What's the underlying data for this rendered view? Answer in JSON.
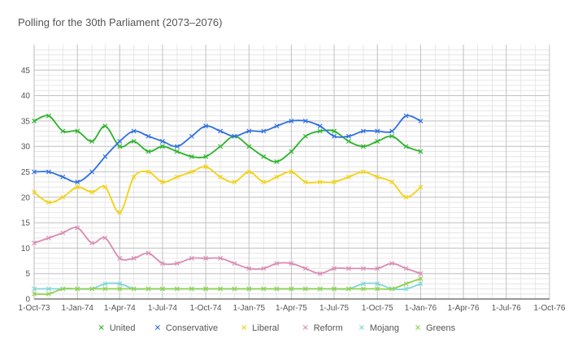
{
  "chart_data": {
    "type": "line",
    "title": "Polling for the 30th Parliament (2073–2076)",
    "xlabel": "",
    "ylabel": "",
    "ylim": [
      0,
      50
    ],
    "yticks": [
      0,
      5,
      10,
      15,
      20,
      25,
      30,
      35,
      40,
      45
    ],
    "x_range": [
      "2073-10-01",
      "2076-10-01"
    ],
    "x_tick_labels": [
      "1-Oct-73",
      "1-Jan-74",
      "1-Apr-74",
      "1-Jul-74",
      "1-Oct-74",
      "1-Jan-75",
      "1-Apr-75",
      "1-Jul-75",
      "1-Oct-75",
      "1-Jan-76",
      "1-Apr-76",
      "1-Jul-76",
      "1-Oct-76"
    ],
    "grid": true,
    "legend_position": "bottom",
    "series": [
      {
        "name": "United",
        "color": "#2bb32b",
        "points": [
          [
            "2073-10-01",
            35
          ],
          [
            "2073-11-01",
            36
          ],
          [
            "2073-12-01",
            33
          ],
          [
            "2074-01-01",
            33
          ],
          [
            "2074-02-01",
            31
          ],
          [
            "2074-03-01",
            34
          ],
          [
            "2074-04-01",
            30
          ],
          [
            "2074-05-01",
            31
          ],
          [
            "2074-06-01",
            29
          ],
          [
            "2074-07-01",
            30
          ],
          [
            "2074-08-01",
            29
          ],
          [
            "2074-09-01",
            28
          ],
          [
            "2074-10-01",
            28
          ],
          [
            "2074-11-01",
            30
          ],
          [
            "2074-12-01",
            32
          ],
          [
            "2075-01-01",
            30
          ],
          [
            "2075-02-01",
            28
          ],
          [
            "2075-03-01",
            27
          ],
          [
            "2075-04-01",
            29
          ],
          [
            "2075-05-01",
            32
          ],
          [
            "2075-06-01",
            33
          ],
          [
            "2075-07-01",
            33
          ],
          [
            "2075-08-01",
            31
          ],
          [
            "2075-09-01",
            30
          ],
          [
            "2075-10-01",
            31
          ],
          [
            "2075-11-01",
            32
          ],
          [
            "2075-12-01",
            30
          ],
          [
            "2076-01-01",
            29
          ]
        ]
      },
      {
        "name": "Conservative",
        "color": "#2f6fe0",
        "points": [
          [
            "2073-10-01",
            25
          ],
          [
            "2073-11-01",
            25
          ],
          [
            "2073-12-01",
            24
          ],
          [
            "2074-01-01",
            23
          ],
          [
            "2074-02-01",
            25
          ],
          [
            "2074-03-01",
            28
          ],
          [
            "2074-04-01",
            31
          ],
          [
            "2074-05-01",
            33
          ],
          [
            "2074-06-01",
            32
          ],
          [
            "2074-07-01",
            31
          ],
          [
            "2074-08-01",
            30
          ],
          [
            "2074-09-01",
            32
          ],
          [
            "2074-10-01",
            34
          ],
          [
            "2074-11-01",
            33
          ],
          [
            "2074-12-01",
            32
          ],
          [
            "2075-01-01",
            33
          ],
          [
            "2075-02-01",
            33
          ],
          [
            "2075-03-01",
            34
          ],
          [
            "2075-04-01",
            35
          ],
          [
            "2075-05-01",
            35
          ],
          [
            "2075-06-01",
            34
          ],
          [
            "2075-07-01",
            32
          ],
          [
            "2075-08-01",
            32
          ],
          [
            "2075-09-01",
            33
          ],
          [
            "2075-10-01",
            33
          ],
          [
            "2075-11-01",
            33
          ],
          [
            "2075-12-01",
            36
          ],
          [
            "2076-01-01",
            35
          ]
        ]
      },
      {
        "name": "Liberal",
        "color": "#f2d20f",
        "points": [
          [
            "2073-10-01",
            21
          ],
          [
            "2073-11-01",
            19
          ],
          [
            "2073-12-01",
            20
          ],
          [
            "2074-01-01",
            22
          ],
          [
            "2074-02-01",
            21
          ],
          [
            "2074-03-01",
            22
          ],
          [
            "2074-04-01",
            17
          ],
          [
            "2074-05-01",
            24
          ],
          [
            "2074-06-01",
            25
          ],
          [
            "2074-07-01",
            23
          ],
          [
            "2074-08-01",
            24
          ],
          [
            "2074-09-01",
            25
          ],
          [
            "2074-10-01",
            26
          ],
          [
            "2074-11-01",
            24
          ],
          [
            "2074-12-01",
            23
          ],
          [
            "2075-01-01",
            25
          ],
          [
            "2075-02-01",
            23
          ],
          [
            "2075-03-01",
            24
          ],
          [
            "2075-04-01",
            25
          ],
          [
            "2075-05-01",
            23
          ],
          [
            "2075-06-01",
            23
          ],
          [
            "2075-07-01",
            23
          ],
          [
            "2075-08-01",
            24
          ],
          [
            "2075-09-01",
            25
          ],
          [
            "2075-10-01",
            24
          ],
          [
            "2075-11-01",
            23
          ],
          [
            "2075-12-01",
            20
          ],
          [
            "2076-01-01",
            22
          ]
        ]
      },
      {
        "name": "Reform",
        "color": "#d98cb3",
        "points": [
          [
            "2073-10-01",
            11
          ],
          [
            "2073-11-01",
            12
          ],
          [
            "2073-12-01",
            13
          ],
          [
            "2074-01-01",
            14
          ],
          [
            "2074-02-01",
            11
          ],
          [
            "2074-03-01",
            12
          ],
          [
            "2074-04-01",
            8
          ],
          [
            "2074-05-01",
            8
          ],
          [
            "2074-06-01",
            9
          ],
          [
            "2074-07-01",
            7
          ],
          [
            "2074-08-01",
            7
          ],
          [
            "2074-09-01",
            8
          ],
          [
            "2074-10-01",
            8
          ],
          [
            "2074-11-01",
            8
          ],
          [
            "2074-12-01",
            7
          ],
          [
            "2075-01-01",
            6
          ],
          [
            "2075-02-01",
            6
          ],
          [
            "2075-03-01",
            7
          ],
          [
            "2075-04-01",
            7
          ],
          [
            "2075-05-01",
            6
          ],
          [
            "2075-06-01",
            5
          ],
          [
            "2075-07-01",
            6
          ],
          [
            "2075-08-01",
            6
          ],
          [
            "2075-09-01",
            6
          ],
          [
            "2075-10-01",
            6
          ],
          [
            "2075-11-01",
            7
          ],
          [
            "2075-12-01",
            6
          ],
          [
            "2076-01-01",
            5
          ]
        ]
      },
      {
        "name": "Mojang",
        "color": "#7fd6d6",
        "points": [
          [
            "2073-10-01",
            2
          ],
          [
            "2073-11-01",
            2
          ],
          [
            "2073-12-01",
            2
          ],
          [
            "2074-01-01",
            2
          ],
          [
            "2074-02-01",
            2
          ],
          [
            "2074-03-01",
            3
          ],
          [
            "2074-04-01",
            3
          ],
          [
            "2074-05-01",
            2
          ],
          [
            "2074-06-01",
            2
          ],
          [
            "2074-07-01",
            2
          ],
          [
            "2074-08-01",
            2
          ],
          [
            "2074-09-01",
            2
          ],
          [
            "2074-10-01",
            2
          ],
          [
            "2074-11-01",
            2
          ],
          [
            "2074-12-01",
            2
          ],
          [
            "2075-01-01",
            2
          ],
          [
            "2075-02-01",
            2
          ],
          [
            "2075-03-01",
            2
          ],
          [
            "2075-04-01",
            2
          ],
          [
            "2075-05-01",
            2
          ],
          [
            "2075-06-01",
            2
          ],
          [
            "2075-07-01",
            2
          ],
          [
            "2075-08-01",
            2
          ],
          [
            "2075-09-01",
            3
          ],
          [
            "2075-10-01",
            3
          ],
          [
            "2075-11-01",
            2
          ],
          [
            "2075-12-01",
            2
          ],
          [
            "2076-01-01",
            3
          ]
        ]
      },
      {
        "name": "Greens",
        "color": "#8fd14f",
        "points": [
          [
            "2073-10-01",
            1
          ],
          [
            "2073-11-01",
            1
          ],
          [
            "2073-12-01",
            2
          ],
          [
            "2074-01-01",
            2
          ],
          [
            "2074-02-01",
            2
          ],
          [
            "2074-03-01",
            2
          ],
          [
            "2074-04-01",
            2
          ],
          [
            "2074-05-01",
            2
          ],
          [
            "2074-06-01",
            2
          ],
          [
            "2074-07-01",
            2
          ],
          [
            "2074-08-01",
            2
          ],
          [
            "2074-09-01",
            2
          ],
          [
            "2074-10-01",
            2
          ],
          [
            "2074-11-01",
            2
          ],
          [
            "2074-12-01",
            2
          ],
          [
            "2075-01-01",
            2
          ],
          [
            "2075-02-01",
            2
          ],
          [
            "2075-03-01",
            2
          ],
          [
            "2075-04-01",
            2
          ],
          [
            "2075-05-01",
            2
          ],
          [
            "2075-06-01",
            2
          ],
          [
            "2075-07-01",
            2
          ],
          [
            "2075-08-01",
            2
          ],
          [
            "2075-09-01",
            2
          ],
          [
            "2075-10-01",
            2
          ],
          [
            "2075-11-01",
            2
          ],
          [
            "2075-12-01",
            3
          ],
          [
            "2076-01-01",
            4
          ]
        ]
      }
    ]
  }
}
